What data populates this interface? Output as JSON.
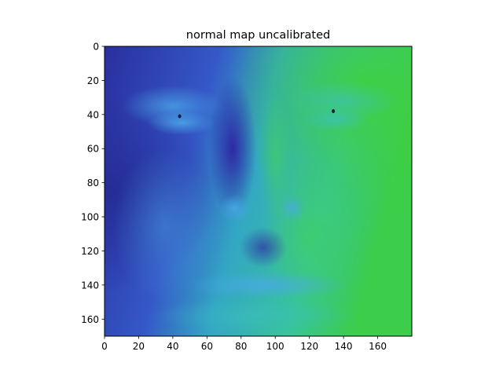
{
  "chart_data": {
    "type": "heatmap",
    "title": "normal map uncalibrated",
    "xlabel": "",
    "ylabel": "",
    "xlim": [
      0,
      180
    ],
    "ylim": [
      170,
      0
    ],
    "x_ticks": [
      0,
      20,
      40,
      60,
      80,
      100,
      120,
      140,
      160
    ],
    "y_ticks": [
      0,
      20,
      40,
      60,
      80,
      100,
      120,
      140,
      160
    ],
    "grid": false,
    "legend": "none",
    "colors": {
      "deep_blue": "#2a2f9e",
      "mid_blue": "#3d6fd0",
      "cyan": "#35b6c8",
      "green": "#3ccd4a",
      "indigo_shadow": "#2c22a0"
    },
    "content": "false-color surface normal map of a human face"
  }
}
